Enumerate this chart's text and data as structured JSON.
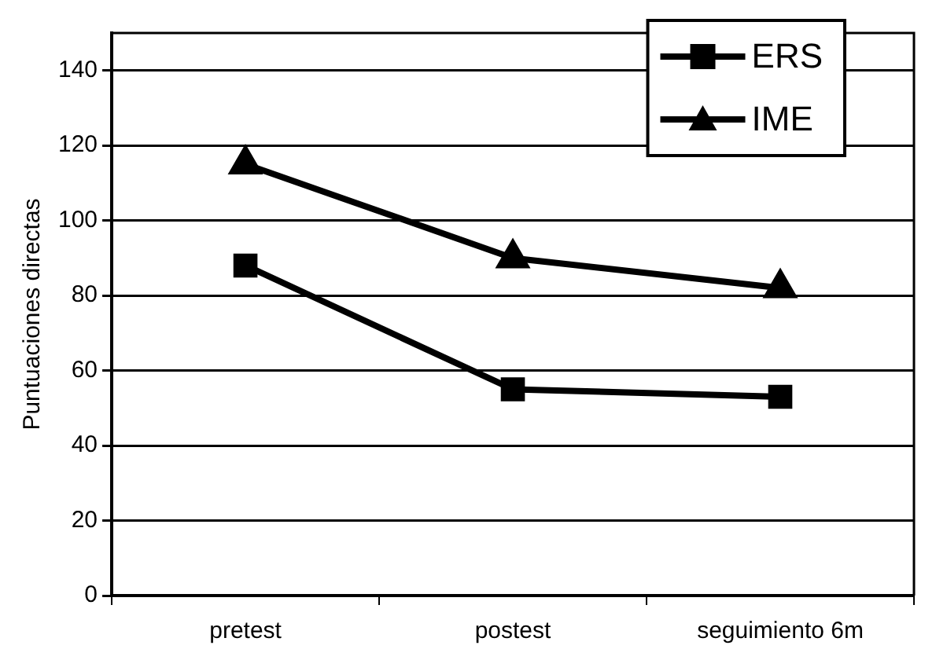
{
  "chart_data": {
    "type": "line",
    "ylabel": "Puntuaciones directas",
    "categories": [
      "pretest",
      "postest",
      "seguimiento 6m"
    ],
    "series": [
      {
        "name": "ERS",
        "color": "#000000",
        "marker": "square",
        "values": [
          88,
          55,
          53
        ]
      },
      {
        "name": "IME",
        "color": "#000000",
        "marker": "triangle",
        "values": [
          115,
          90,
          82
        ]
      }
    ],
    "ylim": [
      0,
      150
    ],
    "yticks": [
      0,
      20,
      40,
      60,
      80,
      100,
      120,
      140
    ],
    "grid": "y",
    "legend": "top right"
  }
}
